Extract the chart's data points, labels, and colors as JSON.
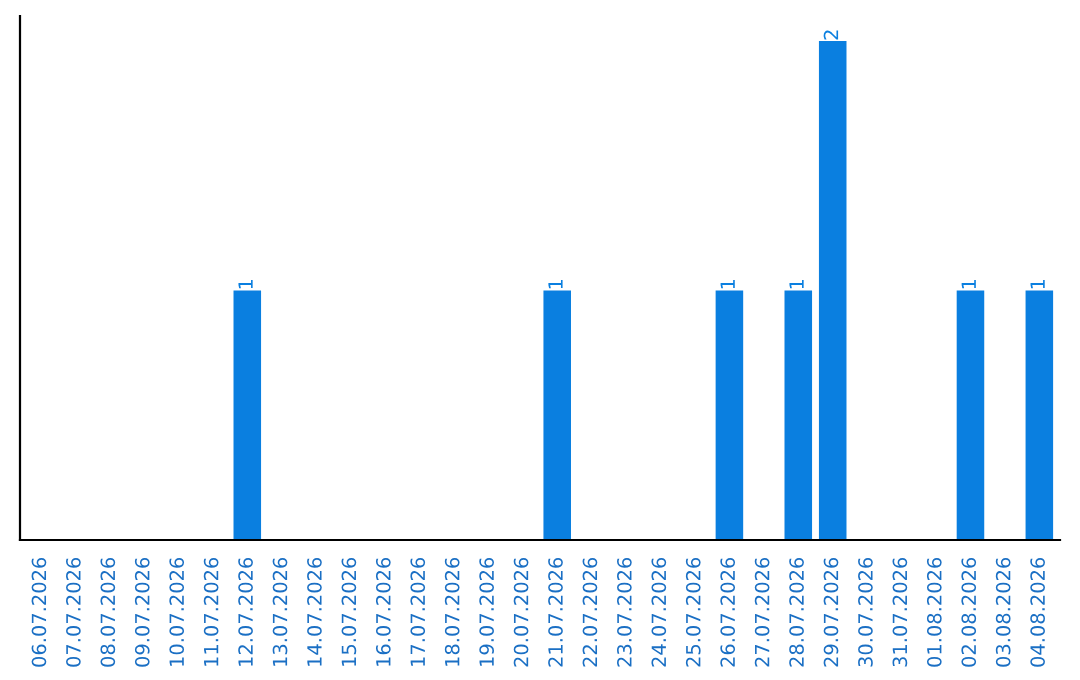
{
  "chart_data": {
    "type": "bar",
    "categories": [
      "06.07.2026",
      "07.07.2026",
      "08.07.2026",
      "09.07.2026",
      "10.07.2026",
      "11.07.2026",
      "12.07.2026",
      "13.07.2026",
      "14.07.2026",
      "15.07.2026",
      "16.07.2026",
      "17.07.2026",
      "18.07.2026",
      "19.07.2026",
      "20.07.2026",
      "21.07.2026",
      "22.07.2026",
      "23.07.2026",
      "24.07.2026",
      "25.07.2026",
      "26.07.2026",
      "27.07.2026",
      "28.07.2026",
      "29.07.2026",
      "30.07.2026",
      "31.07.2026",
      "01.08.2026",
      "02.08.2026",
      "03.08.2026",
      "04.08.2026"
    ],
    "values": [
      0,
      0,
      0,
      0,
      0,
      0,
      1,
      0,
      0,
      0,
      0,
      0,
      0,
      0,
      0,
      1,
      0,
      0,
      0,
      0,
      1,
      0,
      1,
      2,
      0,
      0,
      0,
      1,
      0,
      1
    ],
    "value_labels": [
      null,
      null,
      null,
      null,
      null,
      null,
      "1",
      null,
      null,
      null,
      null,
      null,
      null,
      null,
      null,
      "1",
      null,
      null,
      null,
      null,
      "1",
      null,
      "1",
      "2",
      null,
      null,
      null,
      "1",
      null,
      "1"
    ],
    "color": "#0a7fe0",
    "ylim": [
      0,
      2.1
    ],
    "tick_labels": "x",
    "grid": false,
    "legend": false
  }
}
